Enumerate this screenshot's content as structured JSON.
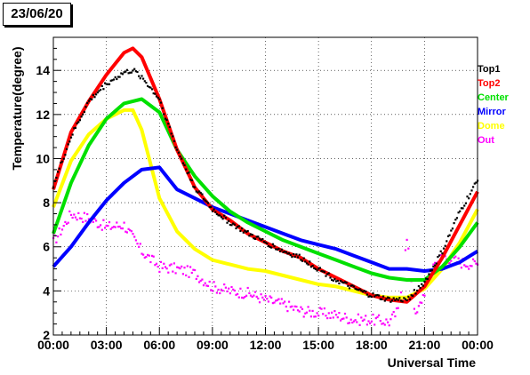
{
  "header": {
    "date_label": "23/06/20"
  },
  "chart_data": {
    "type": "line",
    "title": "",
    "xlabel": "Universal Time",
    "ylabel": "Temperature(degree)",
    "xlim": [
      "00:00",
      "24:00"
    ],
    "ylim": [
      2,
      15.5
    ],
    "x_ticks": [
      "00:00",
      "03:00",
      "06:00",
      "09:00",
      "12:00",
      "15:00",
      "18:00",
      "21:00",
      "00:00"
    ],
    "y_ticks": [
      2,
      4,
      6,
      8,
      10,
      12,
      14
    ],
    "grid": "horizontal dotted",
    "legend_position": "right",
    "series": [
      {
        "name": "Top1",
        "color": "#000000",
        "style": "markers",
        "x": [
          "00:00",
          "01:00",
          "02:00",
          "03:00",
          "04:00",
          "04:30",
          "05:00",
          "06:00",
          "07:00",
          "08:00",
          "09:00",
          "10:00",
          "11:00",
          "12:00",
          "13:00",
          "14:00",
          "15:00",
          "16:00",
          "17:00",
          "18:00",
          "19:00",
          "20:00",
          "21:00",
          "22:00",
          "23:00",
          "24:00"
        ],
        "values": [
          8.8,
          11.0,
          12.6,
          13.4,
          13.9,
          14.0,
          13.7,
          12.7,
          10.4,
          8.7,
          7.7,
          7.1,
          6.6,
          6.2,
          5.8,
          5.5,
          5.0,
          4.5,
          4.1,
          3.8,
          3.6,
          3.6,
          4.4,
          5.8,
          7.6,
          9.0
        ]
      },
      {
        "name": "Top2",
        "color": "#ff0000",
        "style": "line",
        "x": [
          "00:00",
          "01:00",
          "02:00",
          "03:00",
          "04:00",
          "04:30",
          "05:00",
          "06:00",
          "07:00",
          "08:00",
          "09:00",
          "10:00",
          "11:00",
          "12:00",
          "13:00",
          "14:00",
          "15:00",
          "16:00",
          "17:00",
          "18:00",
          "19:00",
          "20:00",
          "21:00",
          "22:00",
          "23:00",
          "24:00"
        ],
        "values": [
          8.6,
          11.2,
          12.6,
          13.8,
          14.8,
          15.0,
          14.6,
          12.7,
          10.4,
          8.7,
          7.7,
          7.2,
          6.6,
          6.2,
          5.8,
          5.5,
          5.0,
          4.6,
          4.2,
          3.8,
          3.6,
          3.5,
          4.2,
          5.5,
          7.0,
          8.5
        ]
      },
      {
        "name": "Center",
        "color": "#00e000",
        "style": "line",
        "x": [
          "00:00",
          "01:00",
          "02:00",
          "03:00",
          "04:00",
          "05:00",
          "06:00",
          "07:00",
          "08:00",
          "09:00",
          "10:00",
          "11:00",
          "12:00",
          "13:00",
          "14:00",
          "15:00",
          "16:00",
          "17:00",
          "18:00",
          "19:00",
          "20:00",
          "21:00",
          "22:00",
          "23:00",
          "24:00"
        ],
        "values": [
          6.6,
          8.9,
          10.6,
          11.8,
          12.5,
          12.7,
          12.1,
          10.4,
          9.2,
          8.3,
          7.6,
          7.1,
          6.7,
          6.3,
          6.0,
          5.7,
          5.4,
          5.1,
          4.8,
          4.6,
          4.5,
          4.5,
          5.1,
          6.0,
          7.1
        ]
      },
      {
        "name": "Mirror",
        "color": "#0000ff",
        "style": "line",
        "x": [
          "00:00",
          "01:00",
          "02:00",
          "03:00",
          "04:00",
          "05:00",
          "06:00",
          "07:00",
          "08:00",
          "09:00",
          "10:00",
          "11:00",
          "12:00",
          "13:00",
          "14:00",
          "15:00",
          "16:00",
          "17:00",
          "18:00",
          "19:00",
          "20:00",
          "21:00",
          "22:00",
          "23:00",
          "24:00"
        ],
        "values": [
          5.1,
          6.0,
          7.1,
          8.1,
          8.9,
          9.5,
          9.6,
          8.6,
          8.2,
          7.8,
          7.5,
          7.2,
          6.9,
          6.6,
          6.3,
          6.1,
          5.9,
          5.6,
          5.3,
          5.0,
          5.0,
          4.9,
          5.0,
          5.3,
          5.8
        ]
      },
      {
        "name": "Dome",
        "color": "#ffff00",
        "style": "line",
        "x": [
          "00:00",
          "01:00",
          "02:00",
          "03:00",
          "04:00",
          "04:30",
          "05:00",
          "06:00",
          "07:00",
          "08:00",
          "09:00",
          "10:00",
          "11:00",
          "12:00",
          "13:00",
          "14:00",
          "15:00",
          "16:00",
          "17:00",
          "18:00",
          "19:00",
          "20:00",
          "21:00",
          "22:00",
          "23:00",
          "24:00"
        ],
        "values": [
          7.8,
          9.9,
          11.1,
          11.8,
          12.2,
          12.2,
          11.3,
          8.2,
          6.7,
          5.9,
          5.4,
          5.2,
          5.0,
          4.9,
          4.7,
          4.5,
          4.3,
          4.2,
          4.0,
          3.8,
          3.7,
          3.7,
          4.1,
          5.0,
          6.2,
          7.7
        ]
      },
      {
        "name": "Out",
        "color": "#ff00ff",
        "style": "markers",
        "x": [
          "00:00",
          "01:00",
          "02:00",
          "03:00",
          "04:00",
          "05:00",
          "06:00",
          "07:00",
          "08:00",
          "09:00",
          "10:00",
          "11:00",
          "12:00",
          "13:00",
          "14:00",
          "15:00",
          "16:00",
          "17:00",
          "18:00",
          "19:00",
          "19:30",
          "20:00",
          "20:30",
          "21:00",
          "21:30",
          "22:00",
          "23:00",
          "24:00"
        ],
        "values": [
          6.2,
          7.5,
          7.3,
          6.9,
          7.0,
          5.8,
          5.1,
          5.0,
          4.8,
          4.2,
          4.0,
          3.9,
          3.6,
          3.4,
          3.1,
          3.0,
          2.9,
          2.7,
          2.7,
          2.6,
          3.1,
          6.3,
          2.8,
          4.0,
          5.2,
          5.6,
          5.3,
          5.2
        ]
      }
    ]
  }
}
